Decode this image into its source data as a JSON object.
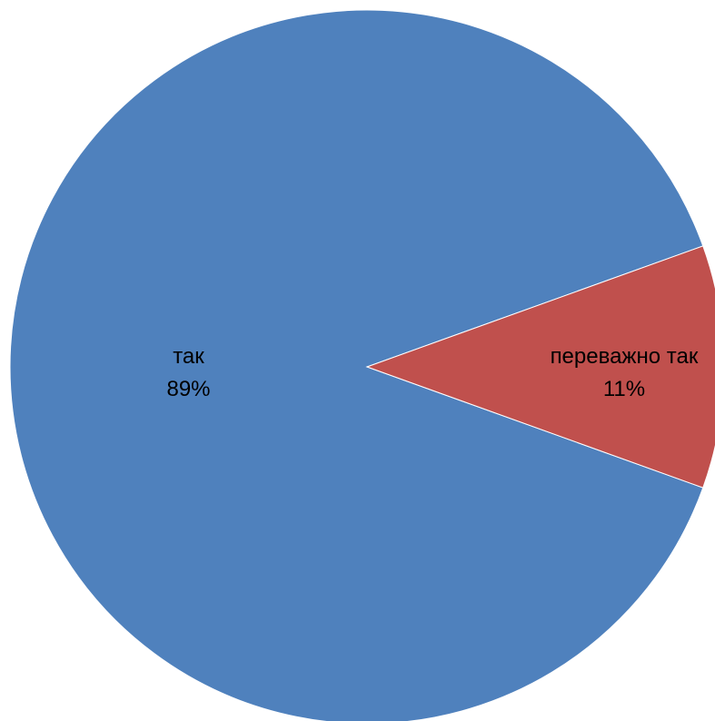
{
  "chart_data": {
    "type": "pie",
    "title": "",
    "slices": [
      {
        "label": "так",
        "value": 89,
        "percent_label": "89%",
        "color": "#4F81BD"
      },
      {
        "label": "переважно так",
        "value": 11,
        "percent_label": "11%",
        "color": "#C0504D"
      }
    ]
  }
}
